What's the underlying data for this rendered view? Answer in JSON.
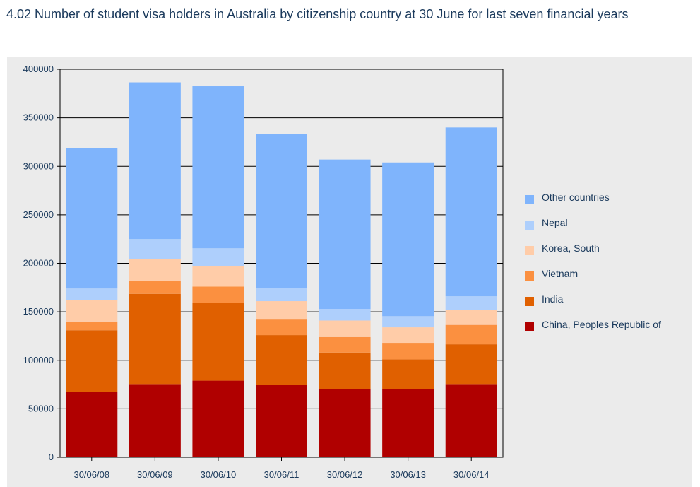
{
  "chart_data": {
    "type": "bar",
    "stacked": true,
    "title": "4.02 Number of student visa holders in Australia by citizenship country at 30 June for last seven financial years",
    "xlabel": "",
    "ylabel": "",
    "ylim": [
      0,
      400000
    ],
    "yticks": [
      0,
      50000,
      100000,
      150000,
      200000,
      250000,
      300000,
      350000,
      400000
    ],
    "grid": true,
    "legend_position": "right",
    "categories": [
      "30/06/08",
      "30/06/09",
      "30/06/10",
      "30/06/11",
      "30/06/12",
      "30/06/13",
      "30/06/14"
    ],
    "series": [
      {
        "name": "China, Peoples Republic of",
        "color": "#b00000",
        "values": [
          67500,
          75500,
          79000,
          74500,
          70000,
          70000,
          75500
        ]
      },
      {
        "name": "India",
        "color": "#e06000",
        "values": [
          63500,
          93000,
          80500,
          51500,
          38000,
          31000,
          41000
        ]
      },
      {
        "name": "Vietnam",
        "color": "#fb9040",
        "values": [
          9000,
          13500,
          16500,
          16000,
          16000,
          17000,
          20000
        ]
      },
      {
        "name": "Korea, South",
        "color": "#ffcca8",
        "values": [
          22000,
          22500,
          21000,
          19000,
          17000,
          16000,
          15500
        ]
      },
      {
        "name": "Nepal",
        "color": "#aecffc",
        "values": [
          12000,
          20500,
          18500,
          13500,
          12000,
          11500,
          14000
        ]
      },
      {
        "name": "Other countries",
        "color": "#7fb4fc",
        "values": [
          144500,
          161500,
          167000,
          158500,
          154000,
          158500,
          174000
        ]
      }
    ],
    "legend_order": [
      "Other countries",
      "Nepal",
      "Korea, South",
      "Vietnam",
      "India",
      "China, Peoples Republic of"
    ]
  }
}
